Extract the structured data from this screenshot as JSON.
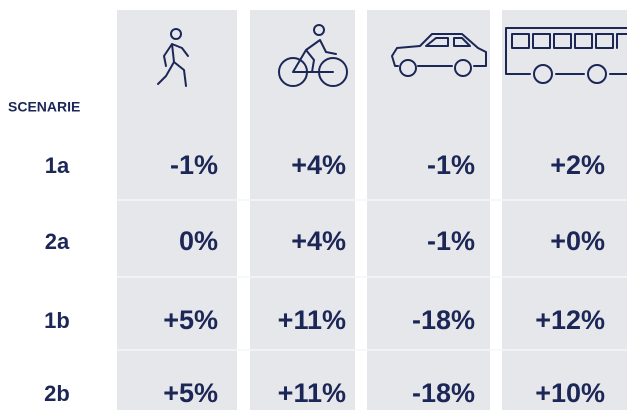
{
  "table": {
    "header": "SCENARIE",
    "rows": [
      {
        "label": "1a",
        "cells": [
          "-1%",
          "+4%",
          "-1%",
          "+2%"
        ]
      },
      {
        "label": "2a",
        "cells": [
          "0%",
          "+4%",
          "-1%",
          "+0%"
        ]
      },
      {
        "label": "1b",
        "cells": [
          "+5%",
          "+11%",
          "-18%",
          "+12%"
        ]
      },
      {
        "label": "2b",
        "cells": [
          "+5%",
          "+11%",
          "-18%",
          "+10%"
        ]
      }
    ]
  }
}
